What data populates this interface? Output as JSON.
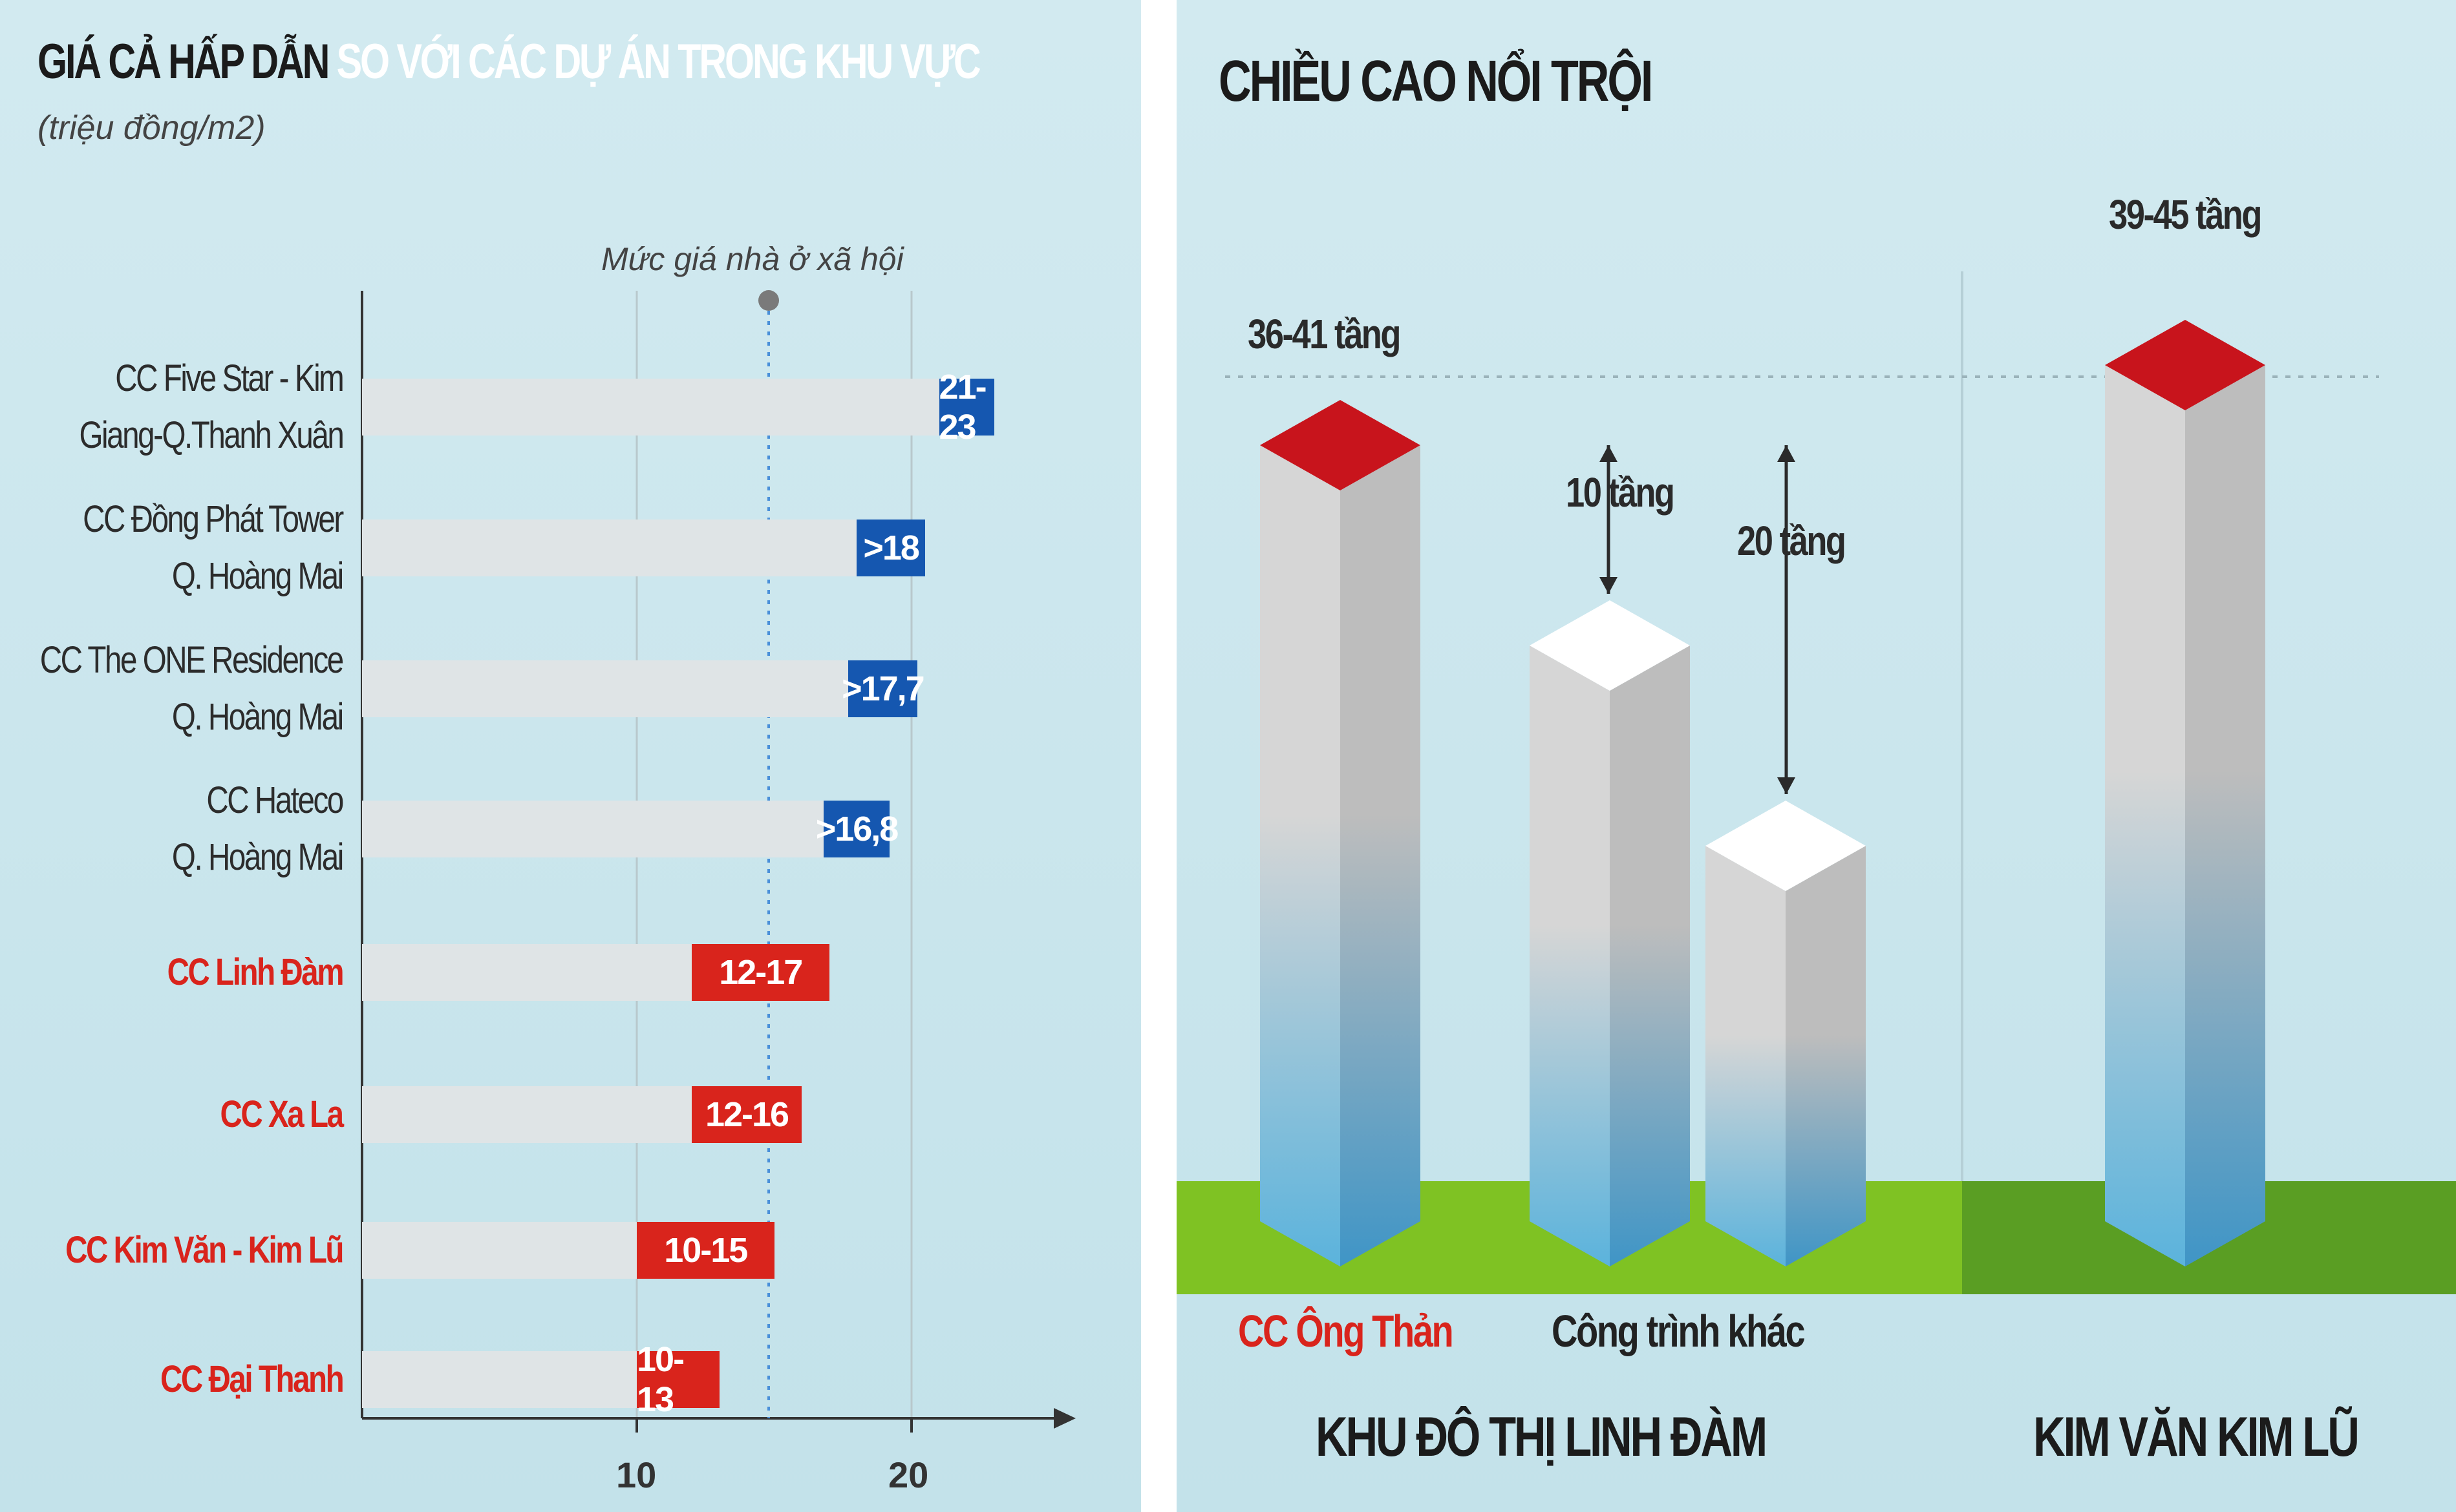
{
  "left_panel": {
    "title_dark": "GIÁ CẢ HẤP DẪN",
    "title_light": "SO VỚI CÁC DỰ ÁN TRONG KHU VỰC",
    "unit": "(triệu đồng/m2)",
    "reference_label": "Mức giá nhà ở xã hội"
  },
  "right_panel": {
    "title": "CHIỀU CAO NỔI TRỘI",
    "building_labels": [
      "36-41 tầng",
      "39-45 tầng"
    ],
    "diff_labels": [
      "10 tầng",
      "20 tầng"
    ],
    "ground_labels": {
      "ong_than": "CC Ông Thản",
      "other": "Công trình khác"
    },
    "area_labels": {
      "linh_dam": "KHU ĐÔ THỊ LINH ĐÀM",
      "kim_van": "KIM VĂN KIM LŨ"
    }
  },
  "colors": {
    "blue": "#1557b0",
    "red": "#d9241c",
    "ground": "#7fc223",
    "roof_red": "#c8141c"
  },
  "chart_data": [
    {
      "type": "bar",
      "title": "GIÁ CẢ HẤP DẪN SO VỚI CÁC DỰ ÁN TRONG KHU VỰC",
      "xlabel": "",
      "ylabel": "(triệu đồng/m2)",
      "xlim": [
        0,
        25
      ],
      "x_ticks": [
        "10",
        "20"
      ],
      "reference_line": {
        "label": "Mức giá nhà ở xã hội",
        "value": 14.8
      },
      "categories": [
        {
          "line1": "CC Five Star - Kim",
          "line2": "Giang-Q.Thanh Xuân",
          "label": "21-23",
          "low": 21,
          "high": 23,
          "color": "blue",
          "highlight": false
        },
        {
          "line1": "CC Đồng Phát Tower",
          "line2": "Q. Hoàng Mai",
          "label": ">18",
          "low": 18,
          "high": 20.5,
          "color": "blue",
          "highlight": false
        },
        {
          "line1": "CC The ONE Residence",
          "line2": "Q. Hoàng Mai",
          "label": ">17,7",
          "low": 17.7,
          "high": 20.2,
          "color": "blue",
          "highlight": false
        },
        {
          "line1": "CC Hateco",
          "line2": "Q. Hoàng Mai",
          "label": ">16,8",
          "low": 16.8,
          "high": 19.2,
          "color": "blue",
          "highlight": false
        },
        {
          "line1": "CC Linh Đàm",
          "line2": "",
          "label": "12-17",
          "low": 12,
          "high": 17,
          "color": "red",
          "highlight": true
        },
        {
          "line1": "CC Xa La",
          "line2": "",
          "label": "12-16",
          "low": 12,
          "high": 16,
          "color": "red",
          "highlight": true
        },
        {
          "line1": "CC Kim Văn - Kim Lũ",
          "line2": "",
          "label": "10-15",
          "low": 10,
          "high": 15,
          "color": "red",
          "highlight": true
        },
        {
          "line1": "CC Đại Thanh",
          "line2": "",
          "label": "10-13",
          "low": 10,
          "high": 13,
          "color": "red",
          "highlight": true
        }
      ]
    },
    {
      "type": "bar",
      "title": "CHIỀU CAO NỔI TRỘI",
      "categories": [
        "CC Ông Thản",
        "Công trình khác",
        "Công trình khác",
        "Kim Văn Kim Lũ"
      ],
      "series": [
        {
          "values": [
            41,
            31,
            21,
            45
          ]
        }
      ],
      "labels": [
        "36-41 tầng",
        "",
        "",
        "39-45 tầng"
      ],
      "annotations": [
        "10 tầng",
        "20 tầng"
      ]
    }
  ]
}
